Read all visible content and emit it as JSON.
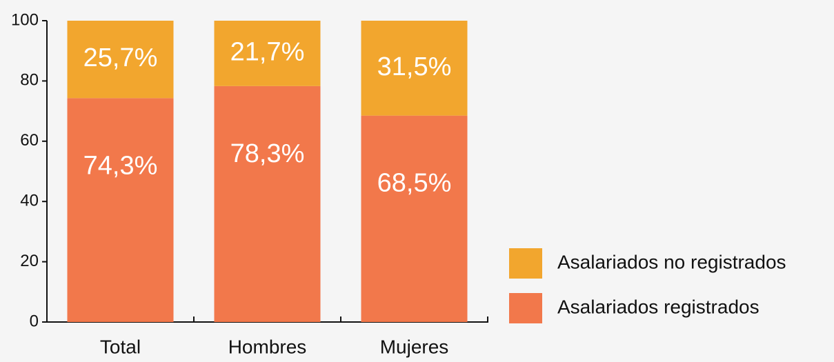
{
  "chart_data": {
    "type": "bar",
    "stacked": true,
    "categories": [
      "Total",
      "Hombres",
      "Mujeres"
    ],
    "series": [
      {
        "name": "Asalariados registrados",
        "color": "#f2784b",
        "values": [
          74.3,
          78.3,
          68.5
        ],
        "value_labels": [
          "74,3%",
          "78,3%",
          "68,5%"
        ]
      },
      {
        "name": "Asalariados no registrados",
        "color": "#f2a62e",
        "values": [
          25.7,
          21.7,
          31.5
        ],
        "value_labels": [
          "25,7%",
          "21,7%",
          "31,5%"
        ]
      }
    ],
    "ylim": [
      0,
      100
    ],
    "yticks": [
      0,
      20,
      40,
      60,
      80,
      100
    ],
    "grid": false,
    "legend": "right"
  }
}
